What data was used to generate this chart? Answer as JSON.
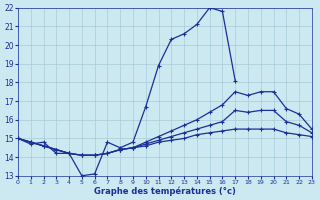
{
  "xlabel": "Graphe des températures (°c)",
  "bg_color": "#cce8f0",
  "grid_color": "#a8ccd8",
  "line_color": "#1a3099",
  "hours": [
    0,
    1,
    2,
    3,
    4,
    5,
    6,
    7,
    8,
    9,
    10,
    11,
    12,
    13,
    14,
    15,
    16,
    17,
    18,
    19,
    20,
    21,
    22,
    23
  ],
  "temp_main": [
    15.0,
    14.7,
    14.8,
    14.2,
    14.2,
    13.0,
    13.1,
    14.8,
    14.5,
    14.8,
    16.7,
    18.9,
    20.3,
    20.6,
    21.1,
    22.0,
    21.8,
    18.1,
    null,
    null,
    null,
    null,
    null,
    null
  ],
  "line_top": [
    15.0,
    14.8,
    14.6,
    14.4,
    14.2,
    14.1,
    14.1,
    14.2,
    14.4,
    14.5,
    14.8,
    15.1,
    15.4,
    15.7,
    16.0,
    16.4,
    16.8,
    17.5,
    17.3,
    17.5,
    17.5,
    16.6,
    16.3,
    15.5
  ],
  "line_mid": [
    15.0,
    14.8,
    14.6,
    14.4,
    14.2,
    14.1,
    14.1,
    14.2,
    14.4,
    14.5,
    14.7,
    14.9,
    15.1,
    15.3,
    15.5,
    15.7,
    15.9,
    16.5,
    16.4,
    16.5,
    16.5,
    15.9,
    15.7,
    15.3
  ],
  "line_bot": [
    15.0,
    14.8,
    14.6,
    14.4,
    14.2,
    14.1,
    14.1,
    14.2,
    14.4,
    14.5,
    14.6,
    14.8,
    14.9,
    15.0,
    15.2,
    15.3,
    15.4,
    15.5,
    15.5,
    15.5,
    15.5,
    15.3,
    15.2,
    15.1
  ],
  "ylim": [
    13,
    22
  ],
  "yticks": [
    13,
    14,
    15,
    16,
    17,
    18,
    19,
    20,
    21,
    22
  ],
  "xlim": [
    0,
    23
  ],
  "xticks": [
    0,
    1,
    2,
    3,
    4,
    5,
    6,
    7,
    8,
    9,
    10,
    11,
    12,
    13,
    14,
    15,
    16,
    17,
    18,
    19,
    20,
    21,
    22,
    23
  ]
}
